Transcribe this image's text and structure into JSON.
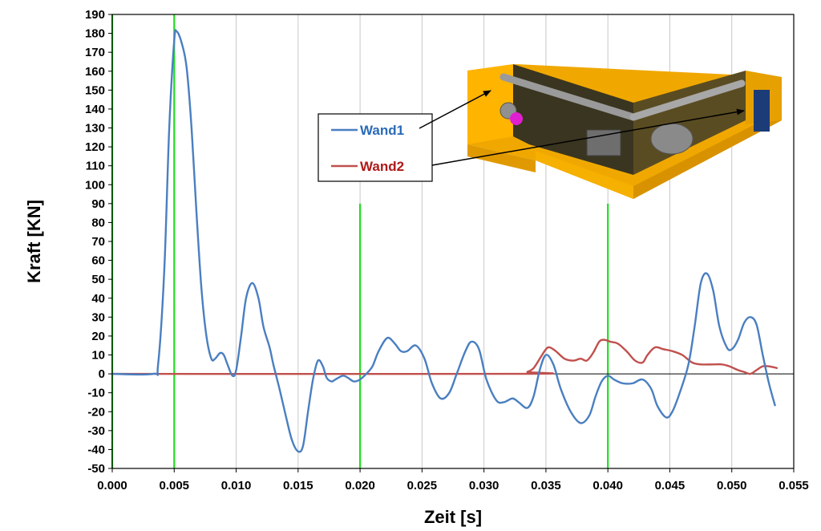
{
  "chart_data": {
    "type": "line",
    "xlabel": "Zeit [s]",
    "ylabel": "Kraft [KN]",
    "xlim": [
      0,
      0.055
    ],
    "ylim": [
      -50,
      190
    ],
    "x_ticks": [
      "0.000",
      "0.005",
      "0.010",
      "0.015",
      "0.020",
      "0.025",
      "0.030",
      "0.035",
      "0.040",
      "0.045",
      "0.050",
      "0.055"
    ],
    "y_ticks": [
      "-50",
      "-40",
      "-30",
      "-20",
      "-10",
      "0",
      "10",
      "20",
      "30",
      "40",
      "50",
      "60",
      "70",
      "80",
      "90",
      "100",
      "110",
      "120",
      "130",
      "140",
      "150",
      "160",
      "170",
      "180",
      "190"
    ],
    "grid": "vertical",
    "legend": "top-right",
    "vertical_markers": [
      {
        "x": 0.0,
        "color": "#22dd22",
        "y_from": -50,
        "y_to": 190
      },
      {
        "x": 0.005,
        "color": "#22dd22",
        "y_from": -50,
        "y_to": 190
      },
      {
        "x": 0.02,
        "color": "#22dd22",
        "y_from": -50,
        "y_to": 90
      },
      {
        "x": 0.04,
        "color": "#22dd22",
        "y_from": -50,
        "y_to": 90
      }
    ],
    "series": [
      {
        "name": "Wand1",
        "color": "#4a7fc1",
        "points": [
          [
            0.0,
            0
          ],
          [
            0.0033,
            0
          ],
          [
            0.0037,
            5
          ],
          [
            0.0042,
            55
          ],
          [
            0.0046,
            130
          ],
          [
            0.005,
            176
          ],
          [
            0.0052,
            181
          ],
          [
            0.0056,
            175
          ],
          [
            0.006,
            162
          ],
          [
            0.0064,
            130
          ],
          [
            0.0068,
            85
          ],
          [
            0.0072,
            45
          ],
          [
            0.0076,
            20
          ],
          [
            0.008,
            8
          ],
          [
            0.0083,
            8
          ],
          [
            0.0087,
            11
          ],
          [
            0.009,
            10
          ],
          [
            0.0093,
            5
          ],
          [
            0.0097,
            -1
          ],
          [
            0.01,
            2
          ],
          [
            0.0104,
            20
          ],
          [
            0.0108,
            40
          ],
          [
            0.0113,
            48
          ],
          [
            0.0118,
            40
          ],
          [
            0.0122,
            25
          ],
          [
            0.0127,
            14
          ],
          [
            0.013,
            5
          ],
          [
            0.0135,
            -8
          ],
          [
            0.014,
            -22
          ],
          [
            0.0145,
            -35
          ],
          [
            0.015,
            -41
          ],
          [
            0.0154,
            -38
          ],
          [
            0.0158,
            -20
          ],
          [
            0.0162,
            -3
          ],
          [
            0.0166,
            7
          ],
          [
            0.017,
            4
          ],
          [
            0.0173,
            -2
          ],
          [
            0.0177,
            -4
          ],
          [
            0.018,
            -3
          ],
          [
            0.0186,
            -1
          ],
          [
            0.019,
            -2
          ],
          [
            0.0195,
            -4
          ],
          [
            0.02,
            -3
          ],
          [
            0.0205,
            0
          ],
          [
            0.021,
            4
          ],
          [
            0.0215,
            12
          ],
          [
            0.0222,
            19
          ],
          [
            0.0228,
            16
          ],
          [
            0.0233,
            12
          ],
          [
            0.0238,
            12
          ],
          [
            0.0245,
            15
          ],
          [
            0.0252,
            8
          ],
          [
            0.0258,
            -5
          ],
          [
            0.0265,
            -13
          ],
          [
            0.0272,
            -10
          ],
          [
            0.0278,
            0
          ],
          [
            0.0285,
            12
          ],
          [
            0.029,
            17
          ],
          [
            0.0296,
            13
          ],
          [
            0.0302,
            -3
          ],
          [
            0.031,
            -14
          ],
          [
            0.0316,
            -15
          ],
          [
            0.0323,
            -13
          ],
          [
            0.0328,
            -15
          ],
          [
            0.0335,
            -18
          ],
          [
            0.034,
            -12
          ],
          [
            0.0345,
            2
          ],
          [
            0.035,
            10
          ],
          [
            0.0356,
            5
          ],
          [
            0.0362,
            -8
          ],
          [
            0.037,
            -20
          ],
          [
            0.0378,
            -26
          ],
          [
            0.0385,
            -22
          ],
          [
            0.039,
            -12
          ],
          [
            0.0395,
            -4
          ],
          [
            0.04,
            -1
          ],
          [
            0.0405,
            -3
          ],
          [
            0.0412,
            -5
          ],
          [
            0.042,
            -5
          ],
          [
            0.0428,
            -3
          ],
          [
            0.0435,
            -8
          ],
          [
            0.044,
            -17
          ],
          [
            0.0447,
            -23
          ],
          [
            0.0452,
            -20
          ],
          [
            0.0458,
            -10
          ],
          [
            0.0465,
            5
          ],
          [
            0.047,
            25
          ],
          [
            0.0475,
            48
          ],
          [
            0.048,
            53
          ],
          [
            0.0485,
            44
          ],
          [
            0.049,
            25
          ],
          [
            0.0496,
            14
          ],
          [
            0.05,
            13
          ],
          [
            0.0505,
            18
          ],
          [
            0.051,
            27
          ],
          [
            0.0515,
            30
          ],
          [
            0.052,
            26
          ],
          [
            0.0525,
            10
          ],
          [
            0.053,
            -5
          ],
          [
            0.0535,
            -17
          ]
        ]
      },
      {
        "name": "Wand2",
        "color": "#c0504d",
        "points": [
          [
            0.0,
            0
          ],
          [
            0.033,
            0
          ],
          [
            0.0335,
            1
          ],
          [
            0.034,
            3
          ],
          [
            0.0345,
            8
          ],
          [
            0.035,
            13
          ],
          [
            0.0353,
            14
          ],
          [
            0.0358,
            12
          ],
          [
            0.0365,
            8
          ],
          [
            0.0372,
            7
          ],
          [
            0.0378,
            8
          ],
          [
            0.0383,
            7
          ],
          [
            0.0388,
            11
          ],
          [
            0.0393,
            17
          ],
          [
            0.0397,
            18
          ],
          [
            0.0402,
            17
          ],
          [
            0.0408,
            16
          ],
          [
            0.0415,
            12
          ],
          [
            0.0422,
            7
          ],
          [
            0.0428,
            6
          ],
          [
            0.0432,
            10
          ],
          [
            0.0438,
            14
          ],
          [
            0.0445,
            13
          ],
          [
            0.0452,
            12
          ],
          [
            0.046,
            10
          ],
          [
            0.0468,
            6
          ],
          [
            0.0475,
            5
          ],
          [
            0.0485,
            5
          ],
          [
            0.0492,
            5
          ],
          [
            0.0498,
            4
          ],
          [
            0.0505,
            2
          ],
          [
            0.051,
            1
          ],
          [
            0.0515,
            0
          ],
          [
            0.052,
            2
          ],
          [
            0.0525,
            4
          ],
          [
            0.053,
            4
          ],
          [
            0.0537,
            3
          ]
        ]
      }
    ],
    "annotations": [
      {
        "text": "Wand1",
        "legend_series": "Wand1"
      },
      {
        "text": "Wand2",
        "legend_series": "Wand2"
      }
    ]
  }
}
